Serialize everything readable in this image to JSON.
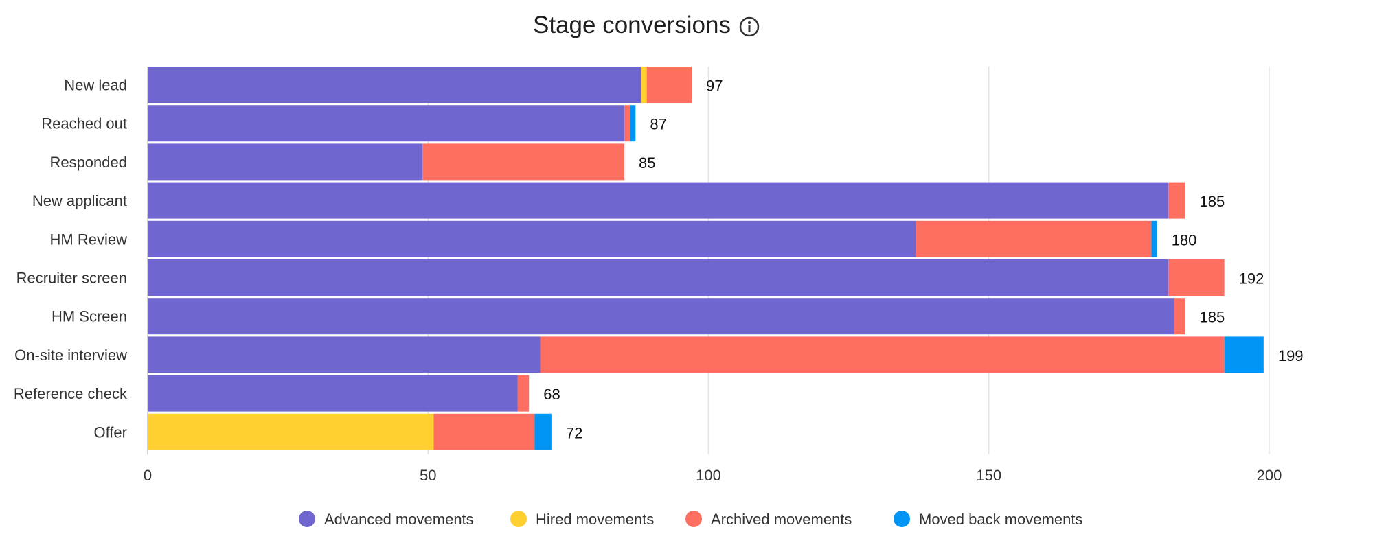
{
  "chart_data": {
    "type": "bar",
    "orientation": "horizontal",
    "stacked": true,
    "title": "Stage conversions",
    "title_icon": "info-icon",
    "categories": [
      "New lead",
      "Reached out",
      "Responded",
      "New applicant",
      "HM Review",
      "Recruiter screen",
      "HM Screen",
      "On-site interview",
      "Reference check",
      "Offer"
    ],
    "series": [
      {
        "name": "Advanced movements",
        "color": "#6F66D0",
        "values": [
          88,
          85,
          49,
          182,
          137,
          182,
          183,
          70,
          66,
          0
        ]
      },
      {
        "name": "Hired movements",
        "color": "#FFD02F",
        "values": [
          1,
          0,
          0,
          0,
          0,
          0,
          0,
          0,
          0,
          51
        ]
      },
      {
        "name": "Archived movements",
        "color": "#FF6F61",
        "values": [
          8,
          1,
          36,
          3,
          42,
          10,
          2,
          122,
          2,
          18
        ]
      },
      {
        "name": "Moved back movements",
        "color": "#0094F5",
        "values": [
          0,
          1,
          0,
          0,
          1,
          0,
          0,
          7,
          0,
          3
        ]
      }
    ],
    "totals": [
      97,
      87,
      85,
      185,
      180,
      192,
      185,
      199,
      68,
      72
    ],
    "xlim": [
      0,
      200
    ],
    "xticks": [
      0,
      50,
      100,
      150,
      200
    ],
    "grid": true,
    "legend": "bottom-center"
  }
}
